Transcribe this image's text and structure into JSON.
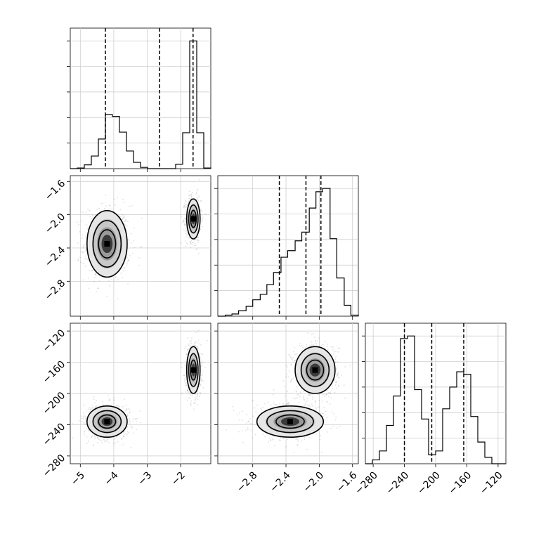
{
  "chart_data": {
    "type": "corner",
    "parameters": [
      "",
      "",
      ""
    ],
    "colors": {
      "line": "#000000",
      "grid": "#c8c8c8",
      "background": "#ffffff",
      "points": "#555555"
    },
    "grid": true,
    "hist_1d": [
      {
        "param_index": 0,
        "range": [
          -5.3,
          -1.1
        ],
        "edges": [
          -5.3,
          -5.09,
          -4.88,
          -4.67,
          -4.46,
          -4.25,
          -4.04,
          -3.83,
          -3.62,
          -3.41,
          -3.2,
          -2.99,
          -2.78,
          -2.57,
          -2.36,
          -2.15,
          -1.94,
          -1.73,
          -1.52,
          -1.31,
          -1.1
        ],
        "counts": [
          0,
          1,
          6,
          20,
          47,
          86,
          83,
          58,
          28,
          10,
          2,
          0,
          0,
          0,
          0,
          7,
          57,
          203,
          57,
          1
        ],
        "quantiles": [
          -4.25,
          -2.63,
          -1.63
        ],
        "ticks": [
          -5,
          -4,
          -3,
          -2
        ],
        "tick_labels": [
          "−5",
          "−4",
          "−3",
          "−2"
        ]
      },
      {
        "param_index": 1,
        "range": [
          -3.22,
          -1.53
        ],
        "edges": [
          -3.22,
          -3.13,
          -3.05,
          -2.97,
          -2.88,
          -2.8,
          -2.71,
          -2.63,
          -2.55,
          -2.46,
          -2.38,
          -2.29,
          -2.21,
          -2.12,
          -2.04,
          -1.96,
          -1.87,
          -1.79,
          -1.7,
          -1.62,
          -1.53
        ],
        "counts": [
          0,
          1,
          2,
          5,
          9,
          15,
          20,
          29,
          40,
          54,
          60,
          69,
          77,
          99,
          114,
          117,
          71,
          35,
          10,
          1
        ],
        "quantiles": [
          -2.48,
          -2.16,
          -1.98
        ],
        "ticks": [
          -2.8,
          -2.4,
          -2.0,
          -1.6
        ],
        "tick_labels": [
          "−2.8",
          "−2.4",
          "−2.0",
          "−1.6"
        ]
      },
      {
        "param_index": 2,
        "range": [
          -290,
          -110
        ],
        "edges": [
          -290,
          -281,
          -272,
          -263,
          -254,
          -245,
          -236,
          -227,
          -218,
          -209,
          -200,
          -191,
          -182,
          -173,
          -164,
          -155,
          -146,
          -137,
          -128,
          -119,
          -110
        ],
        "counts": [
          0,
          3,
          10,
          30,
          53,
          98,
          100,
          58,
          35,
          7,
          10,
          43,
          60,
          72,
          70,
          37,
          17,
          5,
          0,
          0
        ],
        "quantiles": [
          -240,
          -205,
          -164
        ],
        "ticks": [
          -280,
          -240,
          -200,
          -160,
          -120
        ],
        "tick_labels": [
          "−280",
          "−240",
          "−200",
          "−160",
          "−120"
        ]
      }
    ],
    "hist_2d": [
      {
        "x_index": 0,
        "y_index": 1,
        "clusters": [
          {
            "center": [
              -4.2,
              -2.35
            ],
            "sd": [
              0.3,
              0.2
            ],
            "weight": 0.5
          },
          {
            "center": [
              -1.62,
              -2.05
            ],
            "sd": [
              0.1,
              0.12
            ],
            "weight": 0.5
          }
        ]
      },
      {
        "x_index": 0,
        "y_index": 2,
        "clusters": [
          {
            "center": [
              -4.2,
              -236
            ],
            "sd": [
              0.3,
              10
            ],
            "weight": 0.5
          },
          {
            "center": [
              -1.62,
              -170
            ],
            "sd": [
              0.1,
              15
            ],
            "weight": 0.5
          }
        ]
      },
      {
        "x_index": 1,
        "y_index": 2,
        "clusters": [
          {
            "center": [
              -2.35,
              -236
            ],
            "sd": [
              0.2,
              10
            ],
            "weight": 0.5
          },
          {
            "center": [
              -2.05,
              -170
            ],
            "sd": [
              0.12,
              15
            ],
            "weight": 0.5
          }
        ]
      }
    ]
  }
}
